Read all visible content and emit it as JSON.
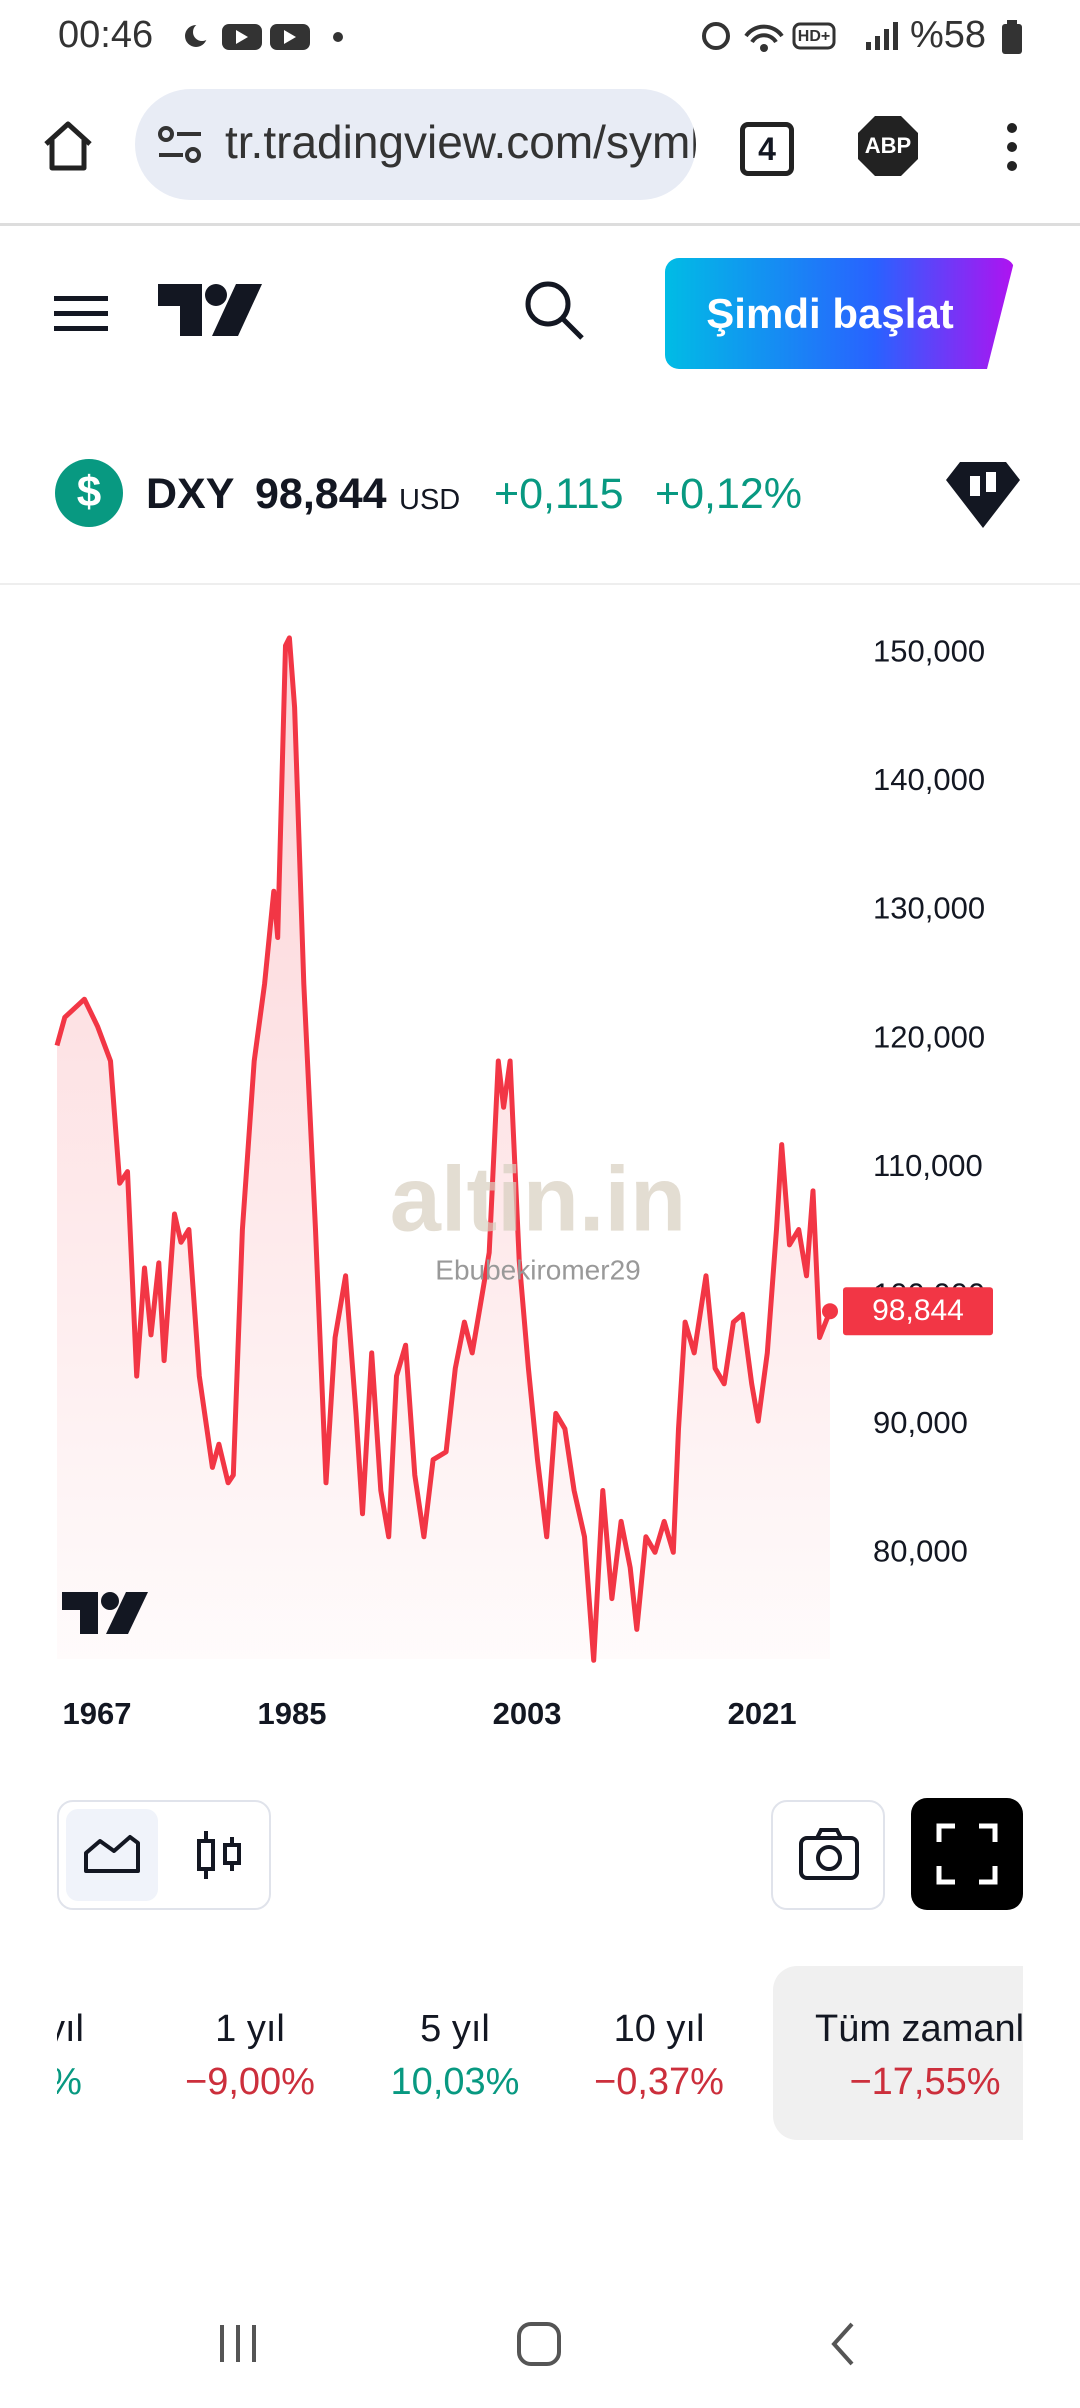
{
  "status_bar": {
    "time": "00:46",
    "battery": "%58"
  },
  "browser": {
    "url": "tr.tradingview.com/symbols/TVC-DXY/",
    "tabs": "4",
    "adblock": "ABP"
  },
  "header": {
    "cta": "Şimdi başlat"
  },
  "ticker": {
    "symbol": "DXY",
    "price": "98,844",
    "currency": "USD",
    "change": "+0,115",
    "change_percent": "+0,12%"
  },
  "chart_data": {
    "type": "line",
    "color": "#f23645",
    "watermark": "altin.in",
    "watermark_user": "Ebubekiromer29",
    "x": [
      1967,
      1967.6,
      1969.1,
      1970.1,
      1971.1,
      1971.8,
      1972.4,
      1973.1,
      1973.7,
      1974.2,
      1974.8,
      1975.2,
      1976,
      1976.5,
      1977.1,
      1977.9,
      1978.9,
      1979.4,
      1980.1,
      1980.5,
      1981.2,
      1982.1,
      1982.9,
      1983.6,
      1983.9,
      1984.5,
      1984.8,
      1985.2,
      1985.9,
      1986.8,
      1987.6,
      1988.3,
      1989.1,
      1989.9,
      1990.4,
      1991.1,
      1991.8,
      1992.4,
      1993,
      1993.7,
      1994.4,
      1995.1,
      1995.8,
      1996.8,
      1997.5,
      1998.2,
      1998.8,
      1999.4,
      2000.1,
      2000.8,
      2001.2,
      2001.7,
      2002.4,
      2003.1,
      2003.8,
      2004.5,
      2005.2,
      2005.9,
      2006.6,
      2007.4,
      2008.1,
      2008.8,
      2009.5,
      2010.2,
      2010.9,
      2011.4,
      2012.1,
      2012.8,
      2013.5,
      2014.2,
      2014.6,
      2015.1,
      2015.8,
      2016.7,
      2017.4,
      2018.1,
      2018.8,
      2019.5,
      2020.2,
      2020.7,
      2021.4,
      2022.1,
      2022.5,
      2023.1,
      2023.8,
      2024.4,
      2024.9,
      2025.4,
      2026.2
    ],
    "values": [
      119.5,
      121.7,
      123.1,
      121,
      118.3,
      108.8,
      109.7,
      93.8,
      102.2,
      97,
      102.6,
      95,
      106.4,
      104.2,
      105.2,
      93.8,
      86.7,
      88.5,
      85.5,
      86.1,
      105.2,
      118.3,
      124.3,
      131.5,
      127.9,
      150.6,
      151.2,
      145.8,
      124.3,
      105.2,
      85.5,
      96.8,
      101.6,
      90.9,
      83.1,
      95.6,
      84.9,
      81.3,
      93.8,
      96.2,
      86.1,
      81.3,
      87.3,
      87.9,
      94.4,
      98,
      95.6,
      99.2,
      103.4,
      118.3,
      114.7,
      118.3,
      102.8,
      94.4,
      87.3,
      81.3,
      90.9,
      89.7,
      84.9,
      81.3,
      71.7,
      84.9,
      76.5,
      82.5,
      78.9,
      74.1,
      81.3,
      80.1,
      82.5,
      80.1,
      89.7,
      98,
      95.6,
      101.6,
      94.4,
      93.2,
      98,
      98.6,
      93.2,
      90.3,
      95.6,
      105.2,
      111.8,
      104,
      105.2,
      101.6,
      108.2,
      96.8,
      98.844
    ],
    "last_price": {
      "value": 98.844,
      "label": "98,844"
    },
    "xlim": [
      1967,
      2026.2
    ],
    "xticks": [
      1967,
      1985,
      2003,
      2021
    ],
    "ylim": [
      71.8,
      153.6
    ],
    "yticks": [
      {
        "value": 80,
        "label": "80,000"
      },
      {
        "value": 90,
        "label": "90,000"
      },
      {
        "value": 100,
        "label": "100,000"
      },
      {
        "value": 110,
        "label": "110,000"
      },
      {
        "value": 120,
        "label": "120,000"
      },
      {
        "value": 130,
        "label": "130,000"
      },
      {
        "value": 140,
        "label": "140,000"
      },
      {
        "value": 150,
        "label": "150,000"
      }
    ],
    "grid": false
  },
  "performance": [
    {
      "period": "yıl",
      "change": "%",
      "color": "#089981"
    },
    {
      "period": "1 yıl",
      "change": "−9,00%",
      "color": "#cc2f3c"
    },
    {
      "period": "5 yıl",
      "change": "10,03%",
      "color": "#089981"
    },
    {
      "period": "10 yıl",
      "change": "−0,37%",
      "color": "#cc2f3c"
    },
    {
      "period": "Tüm zamanlar",
      "change": "−17,55%",
      "color": "#cc2f3c"
    }
  ]
}
